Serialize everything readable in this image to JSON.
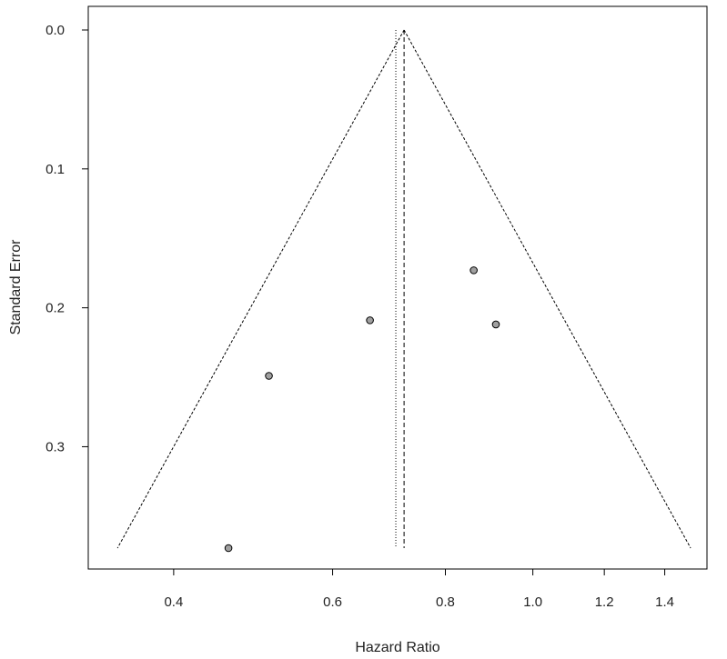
{
  "chart_data": {
    "type": "scatter",
    "subtype": "funnel-plot",
    "xlabel": "Hazard Ratio",
    "ylabel": "Standard Error",
    "x_scale": "log",
    "y_reversed": true,
    "xlim": [
      0.33,
      1.52
    ],
    "ylim": [
      0.0,
      0.39
    ],
    "x_ticks": [
      0.4,
      0.6,
      0.8,
      1.0,
      1.2,
      1.4
    ],
    "x_tick_labels": [
      "0.4",
      "0.6",
      "0.8",
      "1.0",
      "1.2",
      "1.4"
    ],
    "y_ticks": [
      0.0,
      0.1,
      0.2,
      0.3
    ],
    "y_tick_labels": [
      "0.0",
      "0.1",
      "0.2",
      "0.3"
    ],
    "points": [
      {
        "x": 0.46,
        "y": 0.373
      },
      {
        "x": 0.51,
        "y": 0.249
      },
      {
        "x": 0.66,
        "y": 0.209
      },
      {
        "x": 0.86,
        "y": 0.173
      },
      {
        "x": 0.91,
        "y": 0.212
      }
    ],
    "pooled_estimate_fixed": 0.72,
    "pooled_estimate_random": 0.705,
    "funnel_se_max": 0.373,
    "funnel_z": 1.96,
    "grid": false,
    "legend": "none",
    "point_color": "#a0a0a0",
    "line_color": "#000000"
  }
}
